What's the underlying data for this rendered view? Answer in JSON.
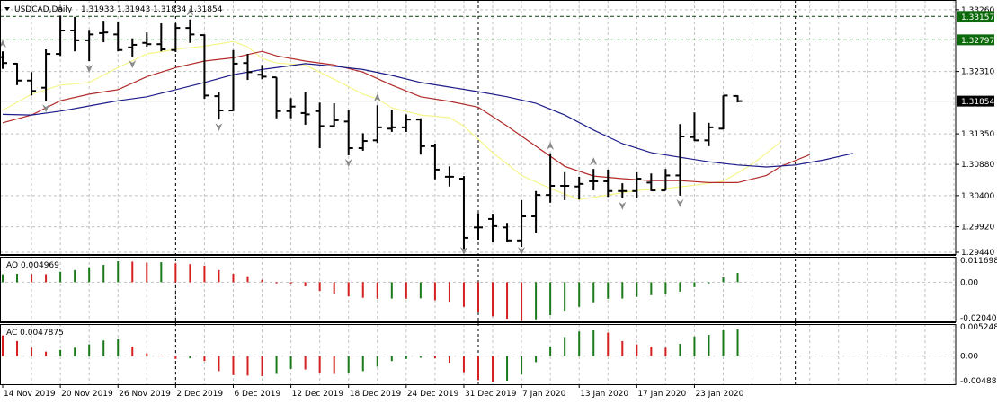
{
  "header": {
    "menu_icon": "triangle-down-icon",
    "symbol": "USDCAD,Daily",
    "ohlc": "1.31933 1.31943 1.31834 1.31854"
  },
  "colors": {
    "bars": "#000000",
    "lips_ma": "#f5f58c",
    "teeth_ma": "#b22a2a",
    "jaw_ma": "#1c1c8a",
    "osc_up": "#1a7a1a",
    "osc_down": "#d42020",
    "level_label_bg": "#0c6a0c",
    "price_label_bg": "#000000",
    "fractal": "#8a8a8a",
    "grid": "#c0c0c0"
  },
  "chart_data": [
    {
      "type": "ohlc",
      "title": "USDCAD,Daily",
      "ylim": [
        1.295,
        1.3341
      ],
      "y_ticks": [
        "1.33260",
        "1.32310",
        "1.31350",
        "1.30880",
        "1.30400",
        "1.29920",
        "1.29440"
      ],
      "x_labels": [
        "14 Nov 2019",
        "20 Nov 2019",
        "26 Nov 2019",
        "2 Dec 2019",
        "6 Dec 2019",
        "12 Dec 2019",
        "18 Dec 2019",
        "24 Dec 2019",
        "31 Dec 2019",
        "7 Jan 2020",
        "13 Jan 2020",
        "17 Jan 2020",
        "23 Jan 2020"
      ],
      "grid": true,
      "ohlc": [
        [
          1.3253,
          1.3262,
          1.3235,
          1.3244
        ],
        [
          1.3243,
          1.3244,
          1.321,
          1.3217
        ],
        [
          1.3217,
          1.323,
          1.3194,
          1.3201
        ],
        [
          1.3206,
          1.3265,
          1.3186,
          1.3258
        ],
        [
          1.3258,
          1.3317,
          1.3255,
          1.3294
        ],
        [
          1.3294,
          1.3315,
          1.3262,
          1.3279
        ],
        [
          1.3279,
          1.3295,
          1.3247,
          1.3288
        ],
        [
          1.329,
          1.3309,
          1.3276,
          1.3291
        ],
        [
          1.3288,
          1.3308,
          1.3262,
          1.3264
        ],
        [
          1.3268,
          1.3282,
          1.3254,
          1.3272
        ],
        [
          1.3275,
          1.3291,
          1.3269,
          1.3273
        ],
        [
          1.3273,
          1.3305,
          1.3262,
          1.3265
        ],
        [
          1.3264,
          1.3305,
          1.3261,
          1.3298
        ],
        [
          1.3298,
          1.3311,
          1.3275,
          1.3288
        ],
        [
          1.3287,
          1.3288,
          1.3189,
          1.3194
        ],
        [
          1.3193,
          1.3199,
          1.3157,
          1.3171
        ],
        [
          1.3171,
          1.3264,
          1.317,
          1.3243
        ],
        [
          1.3244,
          1.3258,
          1.3218,
          1.323
        ],
        [
          1.3226,
          1.3241,
          1.3219,
          1.3223
        ],
        [
          1.3222,
          1.3222,
          1.3159,
          1.317
        ],
        [
          1.317,
          1.319,
          1.3159,
          1.3177
        ],
        [
          1.3167,
          1.3199,
          1.3149,
          1.3165
        ],
        [
          1.317,
          1.3183,
          1.3113,
          1.3147
        ],
        [
          1.3147,
          1.3182,
          1.3145,
          1.3156
        ],
        [
          1.3154,
          1.3171,
          1.3102,
          1.3113
        ],
        [
          1.3113,
          1.3136,
          1.3109,
          1.3124
        ],
        [
          1.3125,
          1.3179,
          1.3121,
          1.3145
        ],
        [
          1.3143,
          1.3172,
          1.3138,
          1.3145
        ],
        [
          1.3145,
          1.3165,
          1.3138,
          1.3157
        ],
        [
          1.3157,
          1.3159,
          1.3103,
          1.3116
        ],
        [
          1.3116,
          1.312,
          1.3065,
          1.308
        ],
        [
          1.3069,
          1.3085,
          1.3054,
          1.3069
        ],
        [
          1.3066,
          1.307,
          1.2958,
          1.2975
        ],
        [
          1.2991,
          1.3013,
          1.2972,
          1.2991
        ],
        [
          1.3004,
          1.3012,
          1.2968,
          1.2993
        ],
        [
          1.2991,
          1.2998,
          1.2968,
          1.2971
        ],
        [
          1.2971,
          1.3033,
          1.2961,
          1.3008
        ],
        [
          1.3008,
          1.3047,
          1.2982,
          1.3041
        ],
        [
          1.3041,
          1.3105,
          1.3029,
          1.3055
        ],
        [
          1.3055,
          1.3076,
          1.3033,
          1.3055
        ],
        [
          1.3054,
          1.3069,
          1.3034,
          1.3058
        ],
        [
          1.3062,
          1.3081,
          1.3048,
          1.3062
        ],
        [
          1.3062,
          1.308,
          1.3038,
          1.3047
        ],
        [
          1.3047,
          1.3059,
          1.3036,
          1.3047
        ],
        [
          1.3047,
          1.3076,
          1.3036,
          1.3066
        ],
        [
          1.306,
          1.3074,
          1.3047,
          1.3048
        ],
        [
          1.3048,
          1.3081,
          1.3048,
          1.3071
        ],
        [
          1.3071,
          1.315,
          1.304,
          1.3131
        ],
        [
          1.313,
          1.3168,
          1.3124,
          1.3125
        ],
        [
          1.3125,
          1.3152,
          1.3116,
          1.3145
        ],
        [
          1.3143,
          1.3194,
          1.3142,
          1.3194
        ],
        [
          1.31933,
          1.31943,
          1.31834,
          1.31854
        ]
      ],
      "lines": [
        {
          "key": "lips_ma",
          "points": [
            [
              0,
              1.3171
            ],
            [
              2,
              1.3196
            ],
            [
              4,
              1.321
            ],
            [
              6,
              1.3214
            ],
            [
              8,
              1.3237
            ],
            [
              10,
              1.3258
            ],
            [
              12,
              1.3265
            ],
            [
              14,
              1.327
            ],
            [
              16,
              1.3277
            ],
            [
              17,
              1.3269
            ],
            [
              18,
              1.3251
            ],
            [
              19,
              1.3244
            ],
            [
              21,
              1.3241
            ],
            [
              23,
              1.3219
            ],
            [
              25,
              1.3196
            ],
            [
              26,
              1.3189
            ],
            [
              27,
              1.3175
            ],
            [
              29,
              1.3164
            ],
            [
              31,
              1.316
            ],
            [
              32,
              1.3147
            ],
            [
              34,
              1.3106
            ],
            [
              36,
              1.3071
            ],
            [
              38,
              1.3051
            ],
            [
              40,
              1.3034
            ],
            [
              42,
              1.3041
            ],
            [
              44,
              1.3048
            ],
            [
              46,
              1.3051
            ],
            [
              48,
              1.3056
            ],
            [
              50,
              1.3062
            ],
            [
              52,
              1.3088
            ],
            [
              54,
              1.3123
            ]
          ]
        },
        {
          "key": "teeth_ma",
          "points": [
            [
              0,
              1.3152
            ],
            [
              2,
              1.3164
            ],
            [
              4,
              1.3186
            ],
            [
              6,
              1.3196
            ],
            [
              8,
              1.3203
            ],
            [
              10,
              1.3223
            ],
            [
              12,
              1.3237
            ],
            [
              14,
              1.3247
            ],
            [
              16,
              1.3252
            ],
            [
              18,
              1.3262
            ],
            [
              19,
              1.3255
            ],
            [
              21,
              1.3247
            ],
            [
              23,
              1.3241
            ],
            [
              25,
              1.323
            ],
            [
              27,
              1.321
            ],
            [
              29,
              1.3192
            ],
            [
              31,
              1.3185
            ],
            [
              33,
              1.3176
            ],
            [
              35,
              1.3147
            ],
            [
              37,
              1.3116
            ],
            [
              39,
              1.3085
            ],
            [
              41,
              1.307
            ],
            [
              43,
              1.3066
            ],
            [
              45,
              1.3063
            ],
            [
              47,
              1.3063
            ],
            [
              49,
              1.306
            ],
            [
              51,
              1.306
            ],
            [
              53,
              1.3071
            ],
            [
              54,
              1.3085
            ],
            [
              56,
              1.3103
            ]
          ]
        },
        {
          "key": "jaw_ma",
          "points": [
            [
              0,
              1.3165
            ],
            [
              2,
              1.3164
            ],
            [
              4,
              1.317
            ],
            [
              6,
              1.3178
            ],
            [
              8,
              1.3186
            ],
            [
              10,
              1.3192
            ],
            [
              12,
              1.3203
            ],
            [
              14,
              1.3214
            ],
            [
              16,
              1.3226
            ],
            [
              18,
              1.3234
            ],
            [
              20,
              1.324
            ],
            [
              21,
              1.3243
            ],
            [
              23,
              1.3239
            ],
            [
              25,
              1.3234
            ],
            [
              27,
              1.3225
            ],
            [
              29,
              1.3214
            ],
            [
              31,
              1.3207
            ],
            [
              33,
              1.32
            ],
            [
              35,
              1.3192
            ],
            [
              37,
              1.3182
            ],
            [
              39,
              1.3164
            ],
            [
              41,
              1.3141
            ],
            [
              43,
              1.312
            ],
            [
              45,
              1.3106
            ],
            [
              47,
              1.3099
            ],
            [
              49,
              1.3092
            ],
            [
              51,
              1.3087
            ],
            [
              53,
              1.3084
            ],
            [
              55,
              1.3087
            ],
            [
              57,
              1.3095
            ],
            [
              59,
              1.3105
            ]
          ]
        }
      ],
      "fractals_up": [
        0,
        4,
        13,
        26,
        38,
        41
      ],
      "fractals_down": [
        3,
        6,
        9,
        15,
        24,
        32,
        36,
        43,
        47
      ],
      "levels": [
        {
          "price": 1.33157,
          "label": "1.33157"
        },
        {
          "price": 1.32797,
          "label": "1.32797"
        }
      ],
      "current_price": {
        "price": 1.31854,
        "label": "1.31854"
      },
      "vertical_markers": [
        12,
        33,
        55
      ]
    },
    {
      "type": "histogram",
      "title": "AO 0.004969",
      "ylim": [
        -0.020407,
        0.011698
      ],
      "y_ticks": [
        "0.011698",
        "0.00",
        "-0.020407"
      ],
      "first_up": true,
      "values": [
        0.0042,
        0.0045,
        0.0044,
        0.0043,
        0.0056,
        0.0065,
        0.008,
        0.0093,
        0.0112,
        0.011,
        0.0105,
        0.0107,
        0.0101,
        0.0097,
        0.0089,
        0.0065,
        0.0045,
        0.0032,
        0.0013,
        -0.0006,
        -0.0007,
        -0.0022,
        -0.0046,
        -0.0061,
        -0.0075,
        -0.0083,
        -0.0088,
        -0.0087,
        -0.0088,
        -0.0086,
        -0.0096,
        -0.0104,
        -0.0131,
        -0.0158,
        -0.0182,
        -0.0195,
        -0.0203,
        -0.0198,
        -0.0176,
        -0.0152,
        -0.0131,
        -0.0107,
        -0.0088,
        -0.0087,
        -0.0078,
        -0.0069,
        -0.0065,
        -0.005,
        -0.0026,
        -0.0006,
        0.0026,
        0.004969
      ]
    },
    {
      "type": "histogram",
      "title": "AC 0.0047875",
      "ylim": [
        -0.004887,
        0.0052482
      ],
      "y_ticks": [
        "0.0052482",
        "0.00",
        "-0.004887"
      ],
      "first_up": false,
      "values": [
        0.0037,
        0.0027,
        0.0015,
        0.0008,
        0.0011,
        0.0015,
        0.0021,
        0.0028,
        0.003,
        0.0017,
        0.0005,
        0.0001,
        -0.0005,
        -0.0004,
        -0.0009,
        -0.0027,
        -0.0034,
        -0.0035,
        -0.0036,
        -0.0032,
        -0.0023,
        -0.0024,
        -0.0031,
        -0.0032,
        -0.0031,
        -0.0027,
        -0.0019,
        -0.0009,
        -0.0005,
        -0.0003,
        -0.0004,
        -0.0012,
        -0.0029,
        -0.0043,
        -0.0046,
        -0.0044,
        -0.0033,
        -0.0011,
        0.0017,
        0.0034,
        0.0044,
        0.0046,
        0.0042,
        0.0027,
        0.0021,
        0.0017,
        0.0015,
        0.0022,
        0.0035,
        0.0038,
        0.0046,
        0.0047875
      ]
    }
  ]
}
